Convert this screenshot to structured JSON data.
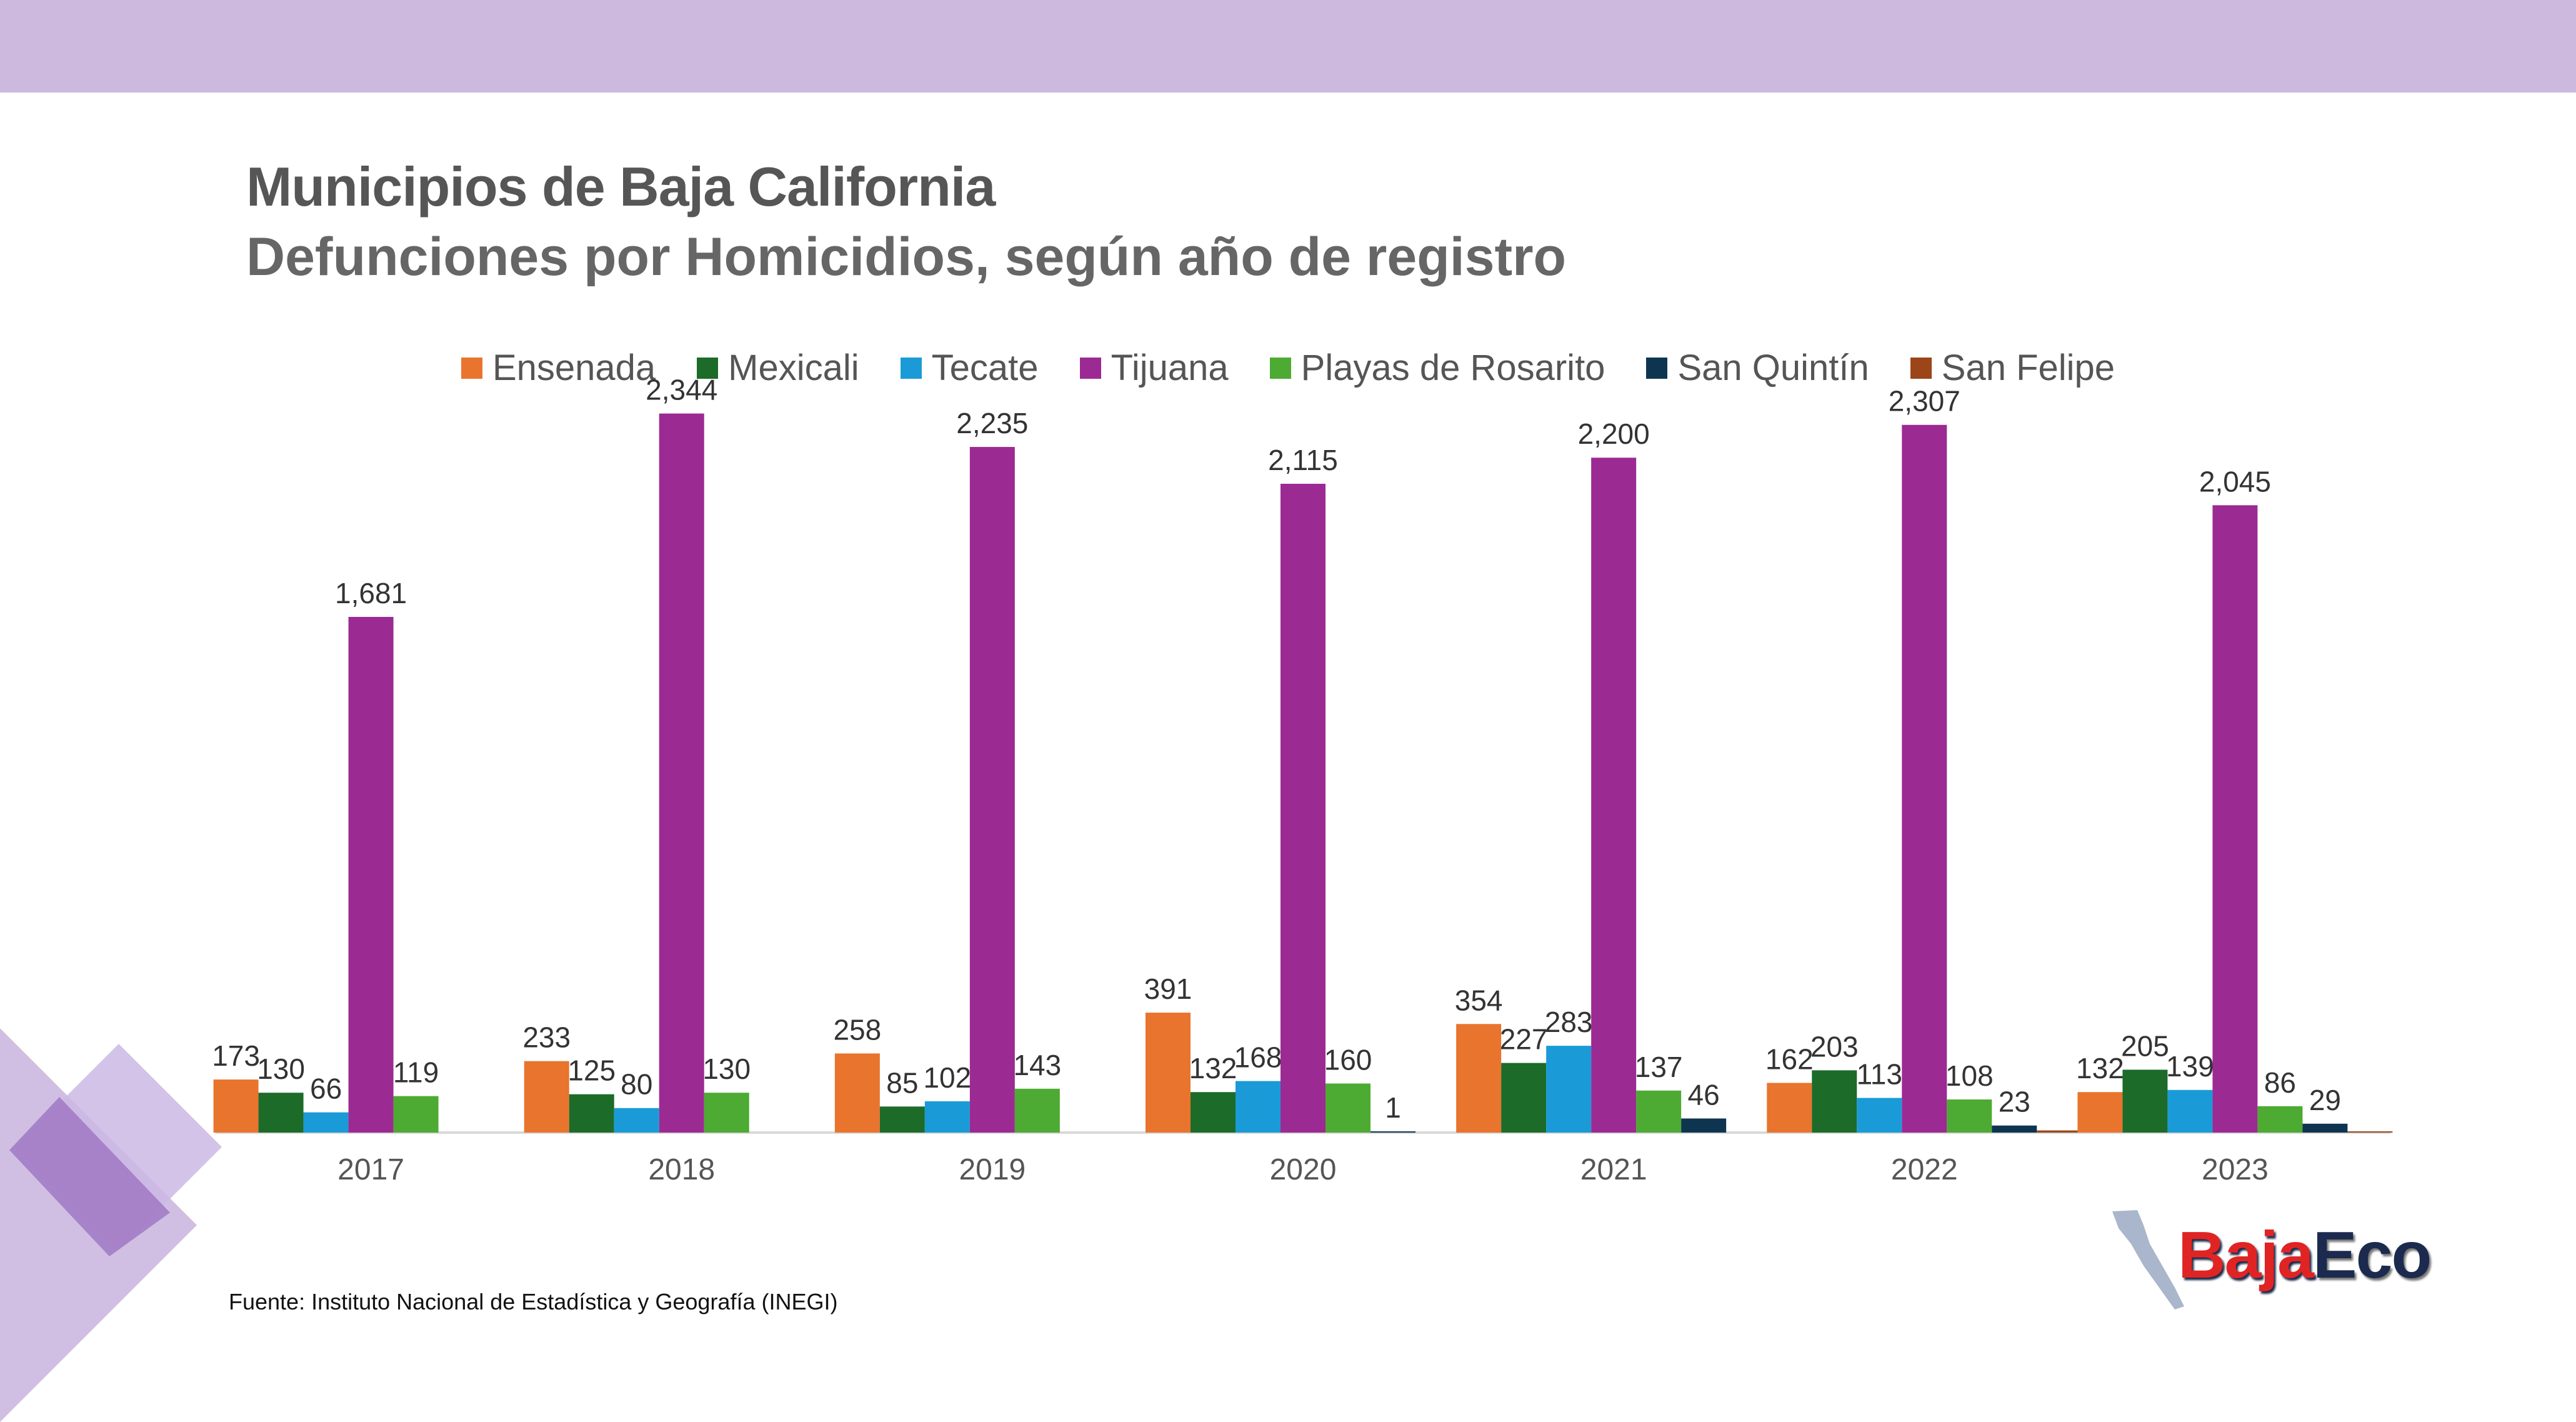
{
  "header": {
    "title": "Municipios de Baja California",
    "subtitle": "Defunciones por Homicidios, según año de registro"
  },
  "source": "Fuente: Instituto Nacional de Estadística y Geografía (INEGI)",
  "logo": {
    "part1": "Baja",
    "part2": "Eco"
  },
  "colors": {
    "band": "#cdb8de",
    "Ensenada": "#e8742e",
    "Mexicali": "#1c6b29",
    "Tecate": "#1a9bd7",
    "Tijuana": "#9c2a93",
    "Playas de Rosarito": "#4daa32",
    "San Quintín": "#0e3550",
    "San Felipe": "#9b4518"
  },
  "chart_data": {
    "type": "bar",
    "categories": [
      "2017",
      "2018",
      "2019",
      "2020",
      "2021",
      "2022",
      "2023"
    ],
    "series": [
      {
        "name": "Ensenada",
        "values": [
          173,
          233,
          258,
          391,
          354,
          162,
          132
        ]
      },
      {
        "name": "Mexicali",
        "values": [
          130,
          125,
          85,
          132,
          227,
          203,
          205
        ]
      },
      {
        "name": "Tecate",
        "values": [
          66,
          80,
          102,
          168,
          283,
          113,
          139
        ]
      },
      {
        "name": "Tijuana",
        "values": [
          1681,
          2344,
          2235,
          2115,
          2200,
          2307,
          2045
        ]
      },
      {
        "name": "Playas de Rosarito",
        "values": [
          119,
          130,
          143,
          160,
          137,
          108,
          86
        ]
      },
      {
        "name": "San Quintín",
        "values": [
          null,
          null,
          null,
          1,
          46,
          23,
          29
        ]
      },
      {
        "name": "San Felipe",
        "values": [
          null,
          null,
          null,
          null,
          null,
          7,
          4
        ]
      }
    ],
    "labels": [
      [
        "173",
        "233",
        "258",
        "391",
        "354",
        "162",
        "132"
      ],
      [
        "130",
        "125",
        "85",
        "132",
        "227",
        "203",
        "205"
      ],
      [
        "66",
        "80",
        "102",
        "168",
        "283",
        "113",
        "139"
      ],
      [
        "1,681",
        "2,344",
        "2,235",
        "2,115",
        "2,200",
        "2,307",
        "2,045"
      ],
      [
        "119",
        "130",
        "143",
        "160",
        "137",
        "108",
        "86"
      ],
      [
        null,
        null,
        null,
        "1",
        "46",
        "23",
        "29"
      ],
      [
        null,
        null,
        null,
        null,
        null,
        null,
        null
      ]
    ],
    "ylim": [
      0,
      2500
    ],
    "legend_position": "top-center",
    "grid": false
  }
}
